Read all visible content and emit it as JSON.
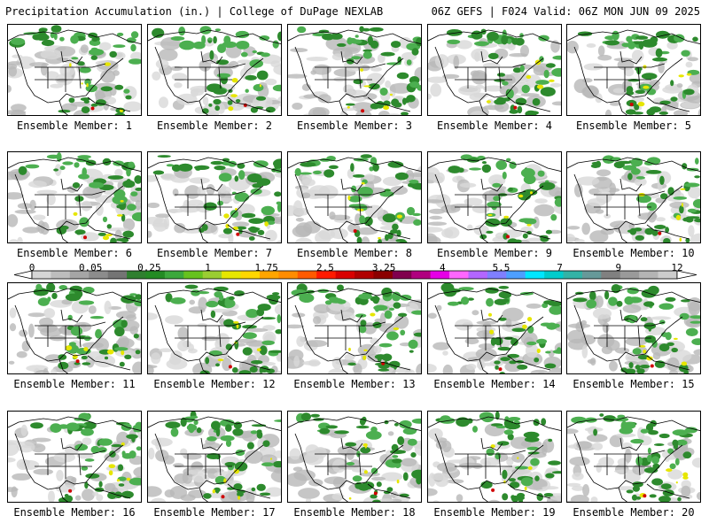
{
  "header": {
    "left": "Precipitation Accumulation (in.) | College of DuPage NEXLAB",
    "right": "06Z GEFS | F024 Valid: 06Z MON JUN 09 2025"
  },
  "panels": [
    {
      "label": "Ensemble Member: 1"
    },
    {
      "label": "Ensemble Member: 2"
    },
    {
      "label": "Ensemble Member: 3"
    },
    {
      "label": "Ensemble Member: 4"
    },
    {
      "label": "Ensemble Member: 5"
    },
    {
      "label": "Ensemble Member: 6"
    },
    {
      "label": "Ensemble Member: 7"
    },
    {
      "label": "Ensemble Member: 8"
    },
    {
      "label": "Ensemble Member: 9"
    },
    {
      "label": "Ensemble Member: 10"
    },
    {
      "label": "Ensemble Member: 11"
    },
    {
      "label": "Ensemble Member: 12"
    },
    {
      "label": "Ensemble Member: 13"
    },
    {
      "label": "Ensemble Member: 14"
    },
    {
      "label": "Ensemble Member: 15"
    },
    {
      "label": "Ensemble Member: 16"
    },
    {
      "label": "Ensemble Member: 17"
    },
    {
      "label": "Ensemble Member: 18"
    },
    {
      "label": "Ensemble Member: 19"
    },
    {
      "label": "Ensemble Member: 20"
    }
  ],
  "colorbar": {
    "labels": [
      "0",
      "0.05",
      "0.25",
      "1",
      "1.75",
      "2.5",
      "3.25",
      "4",
      "5.5",
      "7",
      "9",
      "12"
    ],
    "colors": [
      "#d6d6d6",
      "#bdbdbd",
      "#a5a5a5",
      "#8c8c8c",
      "#747474",
      "#2f7f2f",
      "#238b23",
      "#3ca83c",
      "#66c21e",
      "#9acd32",
      "#e6e600",
      "#ffd700",
      "#ffa500",
      "#ff8c00",
      "#ff5a00",
      "#ff1a00",
      "#d90000",
      "#b00000",
      "#8b0000",
      "#80004d",
      "#b0007f",
      "#e600e6",
      "#ff66ff",
      "#b366ff",
      "#7f7fff",
      "#4d9fff",
      "#00e6ff",
      "#00cccc",
      "#33b3a6",
      "#669999",
      "#808080",
      "#9a9a9a",
      "#b4b4b4",
      "#cccccc"
    ]
  },
  "colors": {
    "land_light": "#d8d8d8",
    "land_mid": "#b8b8b8",
    "precip_green": "#2d8a2d",
    "precip_light": "#4caf50",
    "precip_yellow": "#e6e600",
    "precip_red": "#d00000"
  }
}
